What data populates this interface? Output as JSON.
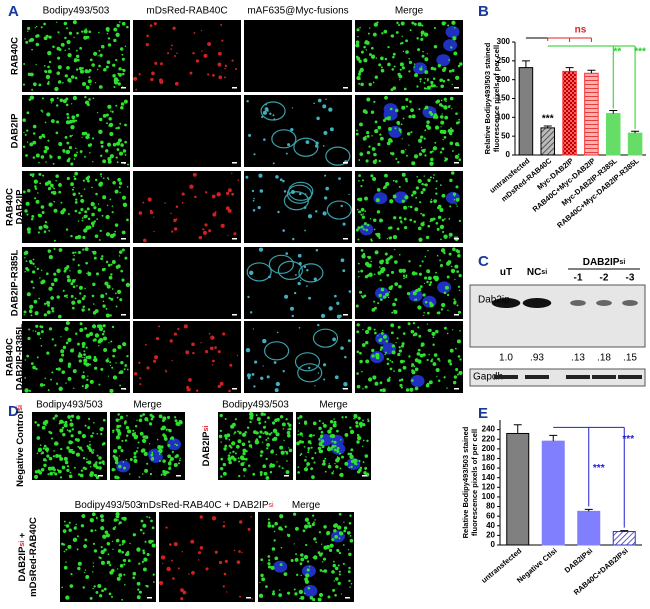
{
  "panel_labels": [
    "A",
    "B",
    "C",
    "D",
    "E"
  ],
  "panel_a": {
    "columns": [
      "Bodipy493/503",
      "mDsRed-RAB40C",
      "mAF635@Myc-fusions",
      "Merge"
    ],
    "rows": [
      [
        "RAB40C"
      ],
      [
        "DAB2IP"
      ],
      [
        "RAB40C",
        "DAB2IP"
      ],
      [
        "DAB2IP-R385L"
      ],
      [
        "RAB40C",
        "DAB2IP-R385L"
      ]
    ]
  },
  "panel_c": {
    "lane_labels": [
      {
        "text": "uT"
      },
      {
        "text": "NC",
        "sub": "si"
      }
    ],
    "group_label": {
      "text": "DAB2IP",
      "sub": "si"
    },
    "group_lanes": [
      "-1",
      "-2",
      "-3"
    ],
    "bands": [
      "Dab2ip",
      "Gapdh"
    ],
    "ratios": [
      "1.0",
      ".93",
      ".13",
      ".18",
      ".15"
    ]
  },
  "panel_d": {
    "top_left": {
      "label": {
        "text": "Negative Control",
        "sub": "si"
      },
      "columns": [
        "Bodipy493/503",
        "Merge"
      ]
    },
    "top_right": {
      "label": {
        "text": "DAB2IP",
        "sub": "si"
      },
      "columns": [
        "Bodipy493/503",
        "Merge"
      ]
    },
    "bottom": {
      "label": [
        {
          "text": "DAB2IP",
          "sub": "si",
          "tail": " +"
        },
        {
          "text": "mDsRed-RAB40C"
        }
      ],
      "columns": [
        {
          "text": "Bodipy493/503"
        },
        {
          "text": "mDsRed-RAB40C + DAB2IP",
          "sub": "si"
        },
        {
          "text": "Merge"
        }
      ]
    }
  },
  "chart_data": [
    {
      "type": "bar",
      "ylabel": [
        "Relative Bodipy493/503 stained",
        "fluorescence pixels of per cell"
      ],
      "categories": [
        "untransfected",
        "mDsRed-RAB40C",
        "Myc-DAB2IP",
        "RAB40C+Myc-DAB2IP",
        "Myc-DAB2IP-R385L",
        "RAB40C+Myc-DAB2IP-R385L"
      ],
      "values": [
        232,
        72,
        222,
        217,
        110,
        58
      ],
      "errors": [
        18,
        5,
        10,
        8,
        8,
        5
      ],
      "colors": [
        "#808080",
        "#808080",
        "#ff3030",
        "#ff3030",
        "#66dd66",
        "#66dd66"
      ],
      "patterns": [
        "solid",
        "hatchDark",
        "checkRed",
        "hatchRed",
        "solid",
        "solid"
      ],
      "ylim": [
        0,
        300
      ],
      "yticks": [
        0,
        50,
        100,
        150,
        200,
        250,
        300
      ],
      "annotations": [
        {
          "text": "***",
          "color": "#000000"
        },
        {
          "text": "ns",
          "color": "#e02020"
        },
        {
          "text": "**",
          "color": "#22cc22"
        },
        {
          "text": "***",
          "color": "#22cc22"
        }
      ]
    },
    {
      "type": "bar",
      "ylabel": [
        "Relative Bodipy493/503 stained",
        "fluorescence pixels of per cell"
      ],
      "categories": [
        "untransfected",
        "Negative Ctlsi",
        "DAB2IPsi",
        "RAB40C+DAB2IPsi"
      ],
      "values": [
        232,
        216,
        70,
        28
      ],
      "errors": [
        18,
        12,
        4,
        2
      ],
      "colors": [
        "#808080",
        "#8080ff",
        "#8080ff",
        "#3030c0"
      ],
      "patterns": [
        "solid",
        "solid",
        "solid",
        "hatchBlue"
      ],
      "ylim": [
        0,
        260
      ],
      "yticks": [
        0,
        20,
        40,
        60,
        80,
        100,
        120,
        140,
        160,
        180,
        200,
        220,
        240
      ],
      "annotations": [
        {
          "text": "***",
          "color": "#2020d0"
        },
        {
          "text": "***",
          "color": "#2020d0"
        }
      ]
    }
  ]
}
